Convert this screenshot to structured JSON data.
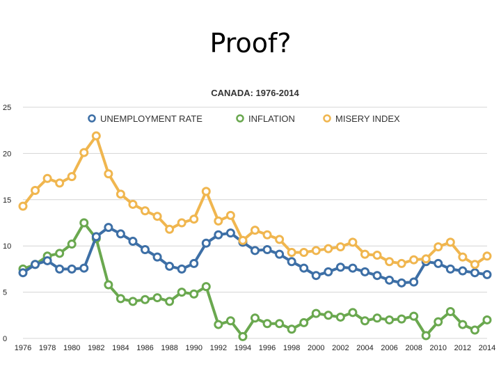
{
  "slide": {
    "title": "Proof?"
  },
  "chart_data": {
    "type": "line",
    "title": "CANADA: 1976-2014",
    "xlabel": "",
    "ylabel": "",
    "ylim": [
      0,
      25
    ],
    "yticks": [
      0,
      5,
      10,
      15,
      20,
      25
    ],
    "grid": true,
    "legend_position": "top",
    "x": [
      1976,
      1977,
      1978,
      1979,
      1980,
      1981,
      1982,
      1983,
      1984,
      1985,
      1986,
      1987,
      1988,
      1989,
      1990,
      1991,
      1992,
      1993,
      1994,
      1995,
      1996,
      1997,
      1998,
      1999,
      2000,
      2001,
      2002,
      2003,
      2004,
      2005,
      2006,
      2007,
      2008,
      2009,
      2010,
      2011,
      2012,
      2013,
      2014
    ],
    "xtick_labels": [
      "1976",
      "1978",
      "1980",
      "1982",
      "1984",
      "1986",
      "1988",
      "1990",
      "1992",
      "1994",
      "1996",
      "1998",
      "2000",
      "2002",
      "2004",
      "2006",
      "2008",
      "2010",
      "2012",
      "2014"
    ],
    "series": [
      {
        "name": "UNEMPLOYMENT RATE",
        "color": "#3d6fa6",
        "values": [
          7.1,
          8.0,
          8.4,
          7.5,
          7.5,
          7.6,
          11.0,
          12.0,
          11.3,
          10.5,
          9.6,
          8.8,
          7.8,
          7.5,
          8.1,
          10.3,
          11.2,
          11.4,
          10.4,
          9.5,
          9.6,
          9.1,
          8.3,
          7.6,
          6.8,
          7.2,
          7.7,
          7.6,
          7.2,
          6.8,
          6.3,
          6.0,
          6.1,
          8.3,
          8.1,
          7.5,
          7.3,
          7.1,
          6.9
        ]
      },
      {
        "name": "INFLATION",
        "color": "#6aa84f",
        "values": [
          7.5,
          8.0,
          8.9,
          9.2,
          10.2,
          12.5,
          10.8,
          5.8,
          4.3,
          4.0,
          4.2,
          4.4,
          4.0,
          5.0,
          4.8,
          5.6,
          1.5,
          1.9,
          0.2,
          2.2,
          1.6,
          1.6,
          1.0,
          1.7,
          2.7,
          2.5,
          2.3,
          2.8,
          1.9,
          2.2,
          2.0,
          2.1,
          2.4,
          0.3,
          1.8,
          2.9,
          1.5,
          0.9,
          2.0
        ]
      },
      {
        "name": "MISERY INDEX",
        "color": "#f0b64f",
        "values": [
          14.3,
          16.0,
          17.3,
          16.8,
          17.5,
          20.1,
          21.9,
          17.8,
          15.6,
          14.5,
          13.8,
          13.2,
          11.8,
          12.5,
          12.9,
          15.9,
          12.7,
          13.3,
          10.6,
          11.7,
          11.2,
          10.7,
          9.3,
          9.3,
          9.5,
          9.7,
          9.9,
          10.4,
          9.1,
          9.0,
          8.3,
          8.1,
          8.5,
          8.6,
          9.9,
          10.4,
          8.8,
          8.0,
          8.9
        ]
      }
    ]
  }
}
